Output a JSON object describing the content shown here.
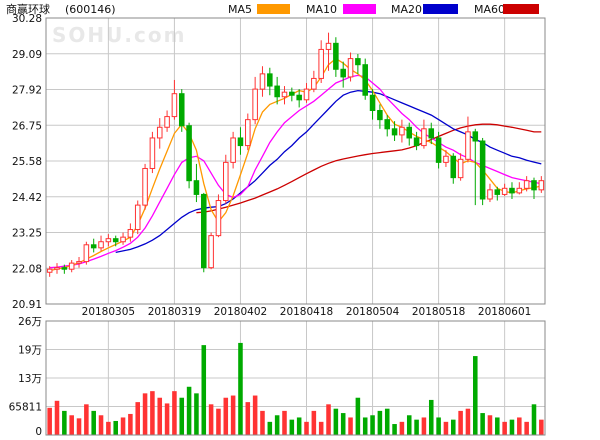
{
  "title": "商赢环球",
  "code": "(600146)",
  "watermark": "SOHU.com",
  "colors": {
    "up": "#ff3333",
    "down": "#00aa00",
    "grid": "#c8c8c8",
    "ma5": "#ff9900",
    "ma10": "#ff00ff",
    "ma20": "#0000cc",
    "ma60": "#cc0000"
  },
  "chart_data": [
    {
      "type": "candlestick",
      "legend": [
        "MA5",
        "MA10",
        "MA20",
        "MA60"
      ],
      "y_ticks": [
        "30.28",
        "29.09",
        "27.92",
        "26.75",
        "25.58",
        "24.42",
        "23.25",
        "22.08",
        "20.91"
      ],
      "ylim": [
        20.91,
        30.28
      ],
      "x_tick_labels": [
        "20180305",
        "20180319",
        "20180402",
        "20180418",
        "20180504",
        "20180518",
        "20180601"
      ],
      "x_tick_index": [
        8,
        17,
        26,
        35,
        44,
        53,
        62
      ],
      "grid": true,
      "candles": [
        [
          21.95,
          22.05,
          21.8,
          22.15
        ],
        [
          22.05,
          22.1,
          21.9,
          22.25
        ],
        [
          22.1,
          22.05,
          21.9,
          22.2
        ],
        [
          22.05,
          22.25,
          21.95,
          22.35
        ],
        [
          22.25,
          22.3,
          22.1,
          22.45
        ],
        [
          22.3,
          22.85,
          22.2,
          22.95
        ],
        [
          22.85,
          22.75,
          22.6,
          23.05
        ],
        [
          22.75,
          22.95,
          22.65,
          23.15
        ],
        [
          22.95,
          23.05,
          22.8,
          23.2
        ],
        [
          23.05,
          22.95,
          22.8,
          23.15
        ],
        [
          22.95,
          23.1,
          22.85,
          23.25
        ],
        [
          23.1,
          23.35,
          22.95,
          23.55
        ],
        [
          23.35,
          24.15,
          23.2,
          24.3
        ],
        [
          24.15,
          25.35,
          24.0,
          25.5
        ],
        [
          25.35,
          26.35,
          25.2,
          26.55
        ],
        [
          26.35,
          26.7,
          26.0,
          27.0
        ],
        [
          26.7,
          27.05,
          26.55,
          27.25
        ],
        [
          27.05,
          27.8,
          26.95,
          28.25
        ],
        [
          27.8,
          26.75,
          26.55,
          27.95
        ],
        [
          26.75,
          24.95,
          24.7,
          26.85
        ],
        [
          24.95,
          24.5,
          24.25,
          25.5
        ],
        [
          24.5,
          22.1,
          21.95,
          24.55
        ],
        [
          22.1,
          23.15,
          22.05,
          23.25
        ],
        [
          23.15,
          24.3,
          23.1,
          24.5
        ],
        [
          24.3,
          25.55,
          24.2,
          25.8
        ],
        [
          25.55,
          26.35,
          25.35,
          26.55
        ],
        [
          26.35,
          26.1,
          25.8,
          26.7
        ],
        [
          26.1,
          26.95,
          25.95,
          27.15
        ],
        [
          26.95,
          27.95,
          26.8,
          28.35
        ],
        [
          27.95,
          28.45,
          27.7,
          28.7
        ],
        [
          28.45,
          28.05,
          27.75,
          28.65
        ],
        [
          28.05,
          27.7,
          27.45,
          28.35
        ],
        [
          27.7,
          27.85,
          27.45,
          28.05
        ],
        [
          27.85,
          27.75,
          27.55,
          28.0
        ],
        [
          27.75,
          27.6,
          27.35,
          27.95
        ],
        [
          27.6,
          27.95,
          27.5,
          28.15
        ],
        [
          27.95,
          28.3,
          27.85,
          28.55
        ],
        [
          28.3,
          29.25,
          28.15,
          29.55
        ],
        [
          29.25,
          29.45,
          28.55,
          29.8
        ],
        [
          29.45,
          28.6,
          28.35,
          29.65
        ],
        [
          28.6,
          28.35,
          28.0,
          28.85
        ],
        [
          28.35,
          28.95,
          28.2,
          29.15
        ],
        [
          28.95,
          28.75,
          28.45,
          29.1
        ],
        [
          28.75,
          27.75,
          27.6,
          28.95
        ],
        [
          27.75,
          27.25,
          26.95,
          27.95
        ],
        [
          27.25,
          26.95,
          26.65,
          27.45
        ],
        [
          26.95,
          26.65,
          26.4,
          27.1
        ],
        [
          26.65,
          26.45,
          26.25,
          26.9
        ],
        [
          26.45,
          26.7,
          26.2,
          26.95
        ],
        [
          26.7,
          26.35,
          26.1,
          26.85
        ],
        [
          26.35,
          26.1,
          25.95,
          26.55
        ],
        [
          26.1,
          26.65,
          26.0,
          26.95
        ],
        [
          26.65,
          26.35,
          26.15,
          26.85
        ],
        [
          26.35,
          25.55,
          25.35,
          26.55
        ],
        [
          25.55,
          25.75,
          25.4,
          25.95
        ],
        [
          25.75,
          25.05,
          24.85,
          25.85
        ],
        [
          25.05,
          25.65,
          24.95,
          25.85
        ],
        [
          25.65,
          26.55,
          25.55,
          27.05
        ],
        [
          26.55,
          26.25,
          24.15,
          26.65
        ],
        [
          26.25,
          24.35,
          24.15,
          26.35
        ],
        [
          24.35,
          24.65,
          24.25,
          24.85
        ],
        [
          24.65,
          24.5,
          24.3,
          24.75
        ],
        [
          24.5,
          24.7,
          24.45,
          24.85
        ],
        [
          24.7,
          24.55,
          24.35,
          24.9
        ],
        [
          24.55,
          24.7,
          24.5,
          24.9
        ],
        [
          24.7,
          24.95,
          24.6,
          25.1
        ],
        [
          24.95,
          24.65,
          24.35,
          25.05
        ],
        [
          24.65,
          24.95,
          24.55,
          25.1
        ]
      ],
      "ma5": [
        22.0,
        22.06,
        22.1,
        22.18,
        22.26,
        22.38,
        22.5,
        22.63,
        22.75,
        22.86,
        22.97,
        23.1,
        23.5,
        24.05,
        24.7,
        25.33,
        25.92,
        26.5,
        26.8,
        26.5,
        25.95,
        24.85,
        24.0,
        23.6,
        23.9,
        24.45,
        25.15,
        25.85,
        26.65,
        27.2,
        27.45,
        27.55,
        27.65,
        27.78,
        27.9,
        27.85,
        28.0,
        28.35,
        28.75,
        28.95,
        28.8,
        28.6,
        28.45,
        28.25,
        27.9,
        27.5,
        27.1,
        26.8,
        26.7,
        26.55,
        26.4,
        26.3,
        26.2,
        26.05,
        25.9,
        25.7,
        25.5,
        25.6,
        25.55,
        25.3,
        25.0,
        24.7,
        24.6,
        24.55,
        24.62,
        24.68,
        24.72,
        24.78
      ],
      "ma10": [
        22.1,
        22.12,
        22.15,
        22.18,
        22.22,
        22.3,
        22.38,
        22.47,
        22.57,
        22.66,
        22.77,
        22.9,
        23.1,
        23.4,
        23.8,
        24.25,
        24.7,
        25.15,
        25.55,
        25.7,
        25.75,
        25.6,
        25.2,
        24.8,
        24.5,
        24.4,
        24.5,
        24.75,
        25.3,
        25.75,
        26.2,
        26.55,
        26.85,
        27.05,
        27.25,
        27.4,
        27.55,
        27.75,
        27.95,
        28.15,
        28.25,
        28.35,
        28.4,
        28.35,
        28.15,
        27.95,
        27.65,
        27.4,
        27.15,
        26.95,
        26.7,
        26.5,
        26.35,
        26.2,
        26.05,
        25.95,
        25.8,
        25.7,
        25.55,
        25.45,
        25.35,
        25.25,
        25.15,
        25.05,
        25.0,
        24.95,
        24.9,
        24.85
      ],
      "ma20": [
        null,
        null,
        null,
        null,
        null,
        null,
        null,
        null,
        null,
        22.6,
        22.65,
        22.7,
        22.78,
        22.88,
        23.0,
        23.15,
        23.35,
        23.55,
        23.75,
        23.9,
        24.0,
        24.05,
        24.08,
        24.1,
        24.2,
        24.35,
        24.55,
        24.75,
        24.95,
        25.2,
        25.45,
        25.65,
        25.9,
        26.1,
        26.35,
        26.55,
        26.8,
        27.05,
        27.3,
        27.55,
        27.75,
        27.85,
        27.9,
        27.88,
        27.85,
        27.8,
        27.7,
        27.6,
        27.5,
        27.4,
        27.3,
        27.2,
        27.1,
        26.95,
        26.8,
        26.65,
        26.55,
        26.45,
        26.3,
        26.2,
        26.05,
        25.95,
        25.85,
        25.75,
        25.7,
        25.62,
        25.56,
        25.5
      ],
      "ma60": [
        null,
        null,
        null,
        null,
        null,
        null,
        null,
        null,
        null,
        null,
        null,
        null,
        null,
        null,
        null,
        null,
        null,
        null,
        null,
        null,
        23.9,
        23.92,
        23.96,
        24.02,
        24.08,
        24.15,
        24.22,
        24.3,
        24.38,
        24.48,
        24.58,
        24.68,
        24.8,
        24.92,
        25.05,
        25.18,
        25.3,
        25.42,
        25.52,
        25.6,
        25.66,
        25.71,
        25.76,
        25.8,
        25.84,
        25.87,
        25.9,
        25.93,
        25.96,
        26.02,
        26.1,
        26.2,
        26.3,
        26.4,
        26.5,
        26.6,
        26.68,
        26.74,
        26.78,
        26.8,
        26.8,
        26.78,
        26.74,
        26.7,
        26.65,
        26.6,
        26.55,
        26.55
      ]
    },
    {
      "type": "bar",
      "y_ticks": [
        "26万",
        "19万",
        "13万",
        "65811",
        "0"
      ],
      "ylim": [
        0,
        260000
      ],
      "volume": [
        62000,
        78000,
        55000,
        45000,
        38000,
        70000,
        55000,
        45000,
        30000,
        32000,
        40000,
        48000,
        75000,
        95000,
        100000,
        85000,
        72000,
        100000,
        85000,
        110000,
        95000,
        205000,
        70000,
        60000,
        85000,
        90000,
        210000,
        75000,
        90000,
        55000,
        30000,
        45000,
        55000,
        35000,
        40000,
        30000,
        55000,
        30000,
        70000,
        60000,
        50000,
        40000,
        85000,
        40000,
        45000,
        55000,
        60000,
        25000,
        30000,
        45000,
        35000,
        40000,
        80000,
        40000,
        30000,
        35000,
        55000,
        60000,
        180000,
        50000,
        45000,
        40000,
        30000,
        35000,
        40000,
        30000,
        70000,
        35000
      ]
    }
  ]
}
